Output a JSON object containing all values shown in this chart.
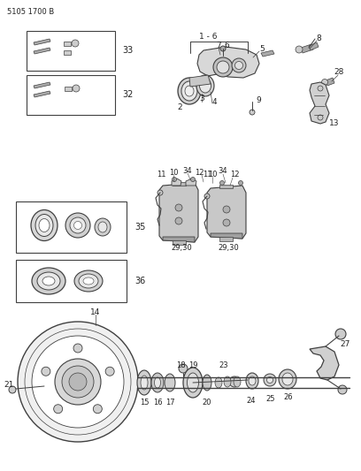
{
  "title_code": "5105 1700 B",
  "background_color": "#ffffff",
  "line_color": "#404040",
  "text_color": "#222222",
  "fig_width": 4.08,
  "fig_height": 5.33,
  "dpi": 100
}
